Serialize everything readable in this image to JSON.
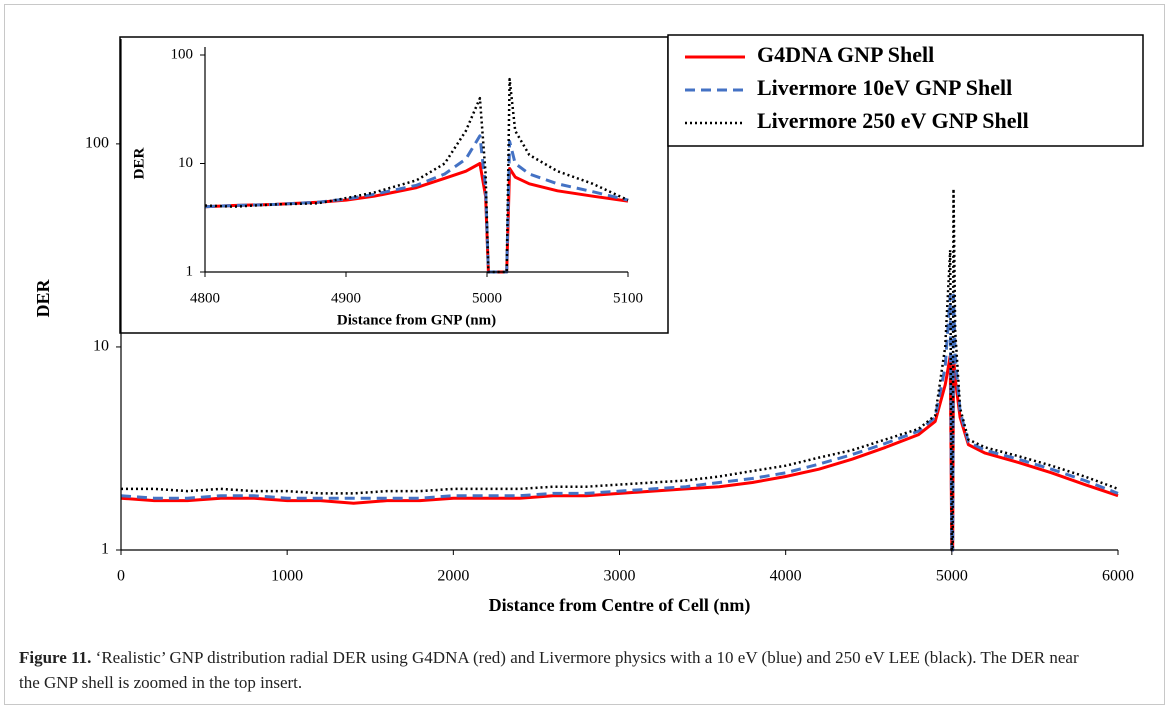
{
  "chart_data": [
    {
      "type": "line",
      "x_label": "Distance from Centre of Cell (nm)",
      "y_label": "DER",
      "log_y": true,
      "xlim": [
        0,
        6000
      ],
      "xticks": [
        0,
        1000,
        2000,
        3000,
        4000,
        5000,
        6000
      ],
      "ylim": [
        1,
        300
      ],
      "yticks": [
        1,
        10,
        100
      ],
      "legend": "upper right",
      "x": [
        0,
        200,
        400,
        600,
        800,
        1000,
        1200,
        1400,
        1600,
        1800,
        2000,
        2200,
        2400,
        2600,
        2800,
        3000,
        3200,
        3400,
        3600,
        3800,
        4000,
        4200,
        4400,
        4600,
        4800,
        4900,
        4960,
        4990,
        5000,
        5005,
        5010,
        5020,
        5050,
        5100,
        5200,
        5400,
        5600,
        5800,
        6000
      ],
      "series": [
        {
          "name": "G4DNA GNP Shell",
          "color": "#ff0000",
          "style": "solid",
          "values": [
            1.8,
            1.75,
            1.75,
            1.8,
            1.8,
            1.75,
            1.75,
            1.7,
            1.75,
            1.75,
            1.8,
            1.8,
            1.8,
            1.85,
            1.85,
            1.9,
            1.95,
            2.0,
            2.05,
            2.15,
            2.3,
            2.5,
            2.8,
            3.2,
            3.7,
            4.3,
            6.5,
            9,
            1,
            1,
            9,
            7,
            4.5,
            3.3,
            3.0,
            2.7,
            2.4,
            2.1,
            1.85
          ]
        },
        {
          "name": "Livermore 10eV GNP Shell",
          "color": "#4472c4",
          "style": "dashed",
          "values": [
            1.85,
            1.8,
            1.8,
            1.85,
            1.85,
            1.8,
            1.8,
            1.8,
            1.8,
            1.8,
            1.85,
            1.85,
            1.85,
            1.9,
            1.9,
            1.95,
            2.0,
            2.05,
            2.15,
            2.25,
            2.4,
            2.65,
            2.95,
            3.35,
            3.85,
            4.5,
            8,
            18,
            1,
            1,
            18,
            9,
            4.8,
            3.4,
            3.1,
            2.8,
            2.5,
            2.2,
            1.9
          ]
        },
        {
          "name": "Livermore 250 eV GNP Shell",
          "color": "#000000",
          "style": "dotted",
          "values": [
            2.0,
            2.0,
            1.95,
            2.0,
            1.95,
            1.95,
            1.9,
            1.9,
            1.95,
            1.95,
            2.0,
            2.0,
            2.0,
            2.05,
            2.05,
            2.1,
            2.15,
            2.2,
            2.3,
            2.45,
            2.6,
            2.85,
            3.1,
            3.5,
            3.95,
            4.6,
            10,
            30,
            1,
            1,
            60,
            12,
            5,
            3.5,
            3.2,
            2.9,
            2.6,
            2.3,
            2.0
          ]
        }
      ]
    },
    {
      "type": "line",
      "x_label": "Distance from GNP (nm)",
      "y_label": "DER",
      "log_y": true,
      "xlim": [
        4800,
        5100
      ],
      "xticks": [
        4800,
        4900,
        5000,
        5100
      ],
      "ylim": [
        1,
        100
      ],
      "yticks": [
        1,
        10,
        100
      ],
      "x": [
        4800,
        4820,
        4850,
        4880,
        4900,
        4920,
        4950,
        4970,
        4985,
        4995,
        4999,
        5001,
        5014,
        5016,
        5020,
        5030,
        5050,
        5075,
        5100
      ],
      "series": [
        {
          "color": "#ff0000",
          "style": "solid",
          "values": [
            4,
            4.1,
            4.2,
            4.4,
            4.6,
            5.0,
            6.0,
            7.3,
            8.5,
            10,
            5,
            1,
            1,
            9,
            7.5,
            6.5,
            5.6,
            5.0,
            4.5
          ]
        },
        {
          "color": "#4472c4",
          "style": "dashed",
          "values": [
            4,
            4.1,
            4.2,
            4.4,
            4.7,
            5.2,
            6.3,
            8,
            11,
            18,
            6,
            1,
            1,
            16,
            10,
            8,
            6.5,
            5.5,
            4.6
          ]
        },
        {
          "color": "#000000",
          "style": "dotted",
          "values": [
            4.1,
            4,
            4.2,
            4.3,
            4.8,
            5.4,
            7,
            10,
            20,
            40,
            8,
            1,
            1,
            60,
            20,
            12,
            8.5,
            6.5,
            4.6
          ]
        }
      ]
    }
  ],
  "caption": {
    "label": "Figure 11.",
    "text": "‘Realistic’ GNP distribution radial DER using G4DNA (red) and Livermore physics with a 10 eV (blue) and 250 eV LEE (black). The DER near the GNP shell is zoomed in the top insert."
  }
}
